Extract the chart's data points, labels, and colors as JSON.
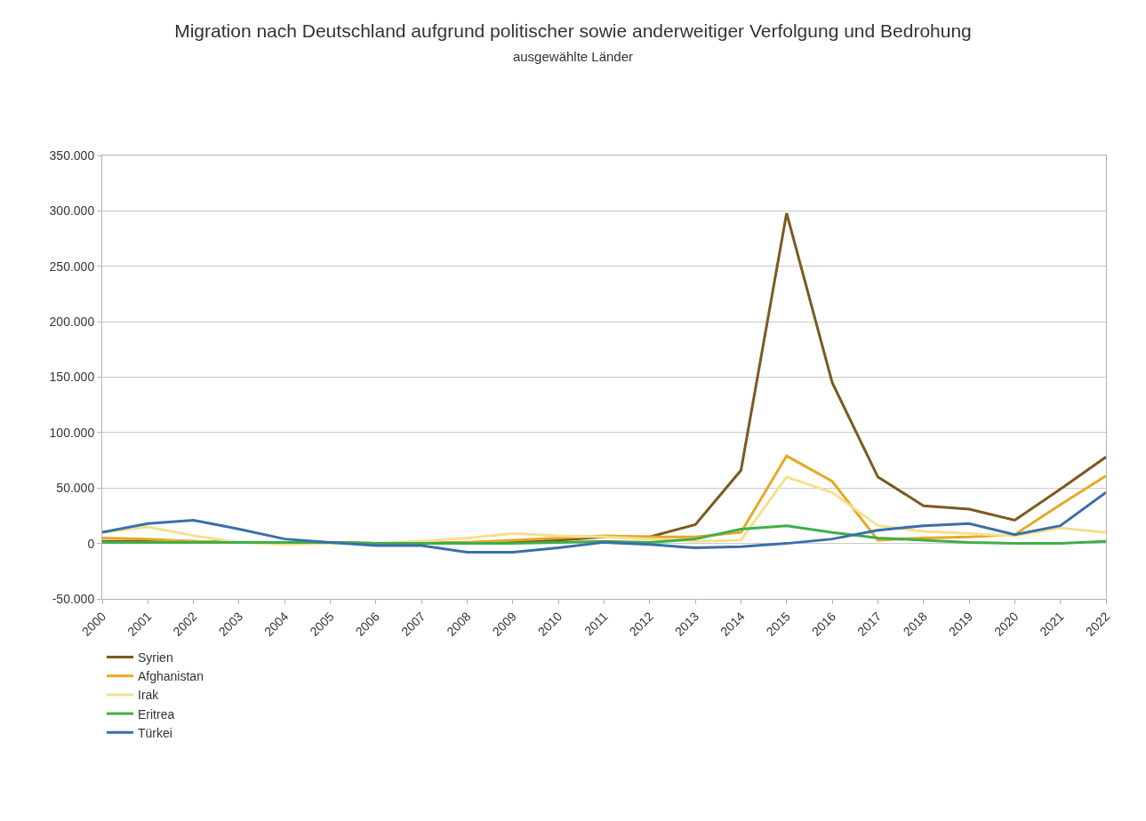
{
  "chart_data": {
    "type": "line",
    "title": "Migration nach Deutschland aufgrund politischer sowie anderweitiger Verfolgung und Bedrohung",
    "subtitle": "ausgewählte Länder",
    "categories": [
      "2000",
      "2001",
      "2002",
      "2003",
      "2004",
      "2005",
      "2006",
      "2007",
      "2008",
      "2009",
      "2010",
      "2011",
      "2012",
      "2013",
      "2014",
      "2015",
      "2016",
      "2017",
      "2018",
      "2019",
      "2020",
      "2021",
      "2022"
    ],
    "series": [
      {
        "name": "Syrien",
        "color": "#7b5a1e",
        "values": [
          2000,
          2000,
          2000,
          1000,
          1000,
          1000,
          0,
          0,
          1000,
          2000,
          3000,
          6000,
          6000,
          17000,
          66000,
          298000,
          145000,
          60000,
          34000,
          31000,
          21000,
          49000,
          78000
        ]
      },
      {
        "name": "Afghanistan",
        "color": "#e6a925",
        "values": [
          5000,
          4000,
          2000,
          1000,
          1000,
          1000,
          0,
          0,
          1000,
          3000,
          5000,
          7000,
          6000,
          6000,
          10000,
          79000,
          56000,
          3000,
          5000,
          6000,
          8000,
          35000,
          61000
        ]
      },
      {
        "name": "Irak",
        "color": "#f5e08f",
        "values": [
          10000,
          15000,
          7000,
          1000,
          -1000,
          0,
          0,
          2000,
          5000,
          9000,
          7000,
          6000,
          4000,
          2000,
          3000,
          60000,
          46000,
          16000,
          11000,
          9000,
          7000,
          14000,
          10000
        ]
      },
      {
        "name": "Eritrea",
        "color": "#3fae49",
        "values": [
          1000,
          1000,
          1000,
          1000,
          1000,
          1000,
          0,
          0,
          0,
          0,
          1000,
          2000,
          1000,
          4000,
          13000,
          16000,
          10000,
          5000,
          3000,
          1000,
          0,
          0,
          2000
        ]
      },
      {
        "name": "Türkei",
        "color": "#3a6fa8",
        "values": [
          10000,
          18000,
          21000,
          13000,
          4000,
          1000,
          -2000,
          -2000,
          -8000,
          -8000,
          -4000,
          1000,
          -1000,
          -4000,
          -3000,
          0,
          4000,
          12000,
          16000,
          18000,
          8000,
          16000,
          46000
        ]
      }
    ],
    "ylim": [
      -50000,
      350000
    ],
    "yticks": [
      {
        "value": -50000,
        "label": "-50.000"
      },
      {
        "value": 0,
        "label": "0"
      },
      {
        "value": 50000,
        "label": "50.000"
      },
      {
        "value": 100000,
        "label": "100.000"
      },
      {
        "value": 150000,
        "label": "150.000"
      },
      {
        "value": 200000,
        "label": "200.000"
      },
      {
        "value": 250000,
        "label": "250.000"
      },
      {
        "value": 300000,
        "label": "300.000"
      },
      {
        "value": 350000,
        "label": "350.000"
      }
    ],
    "grid": "y",
    "legend": "bottom left",
    "marker": "none",
    "line_style": "solid"
  }
}
